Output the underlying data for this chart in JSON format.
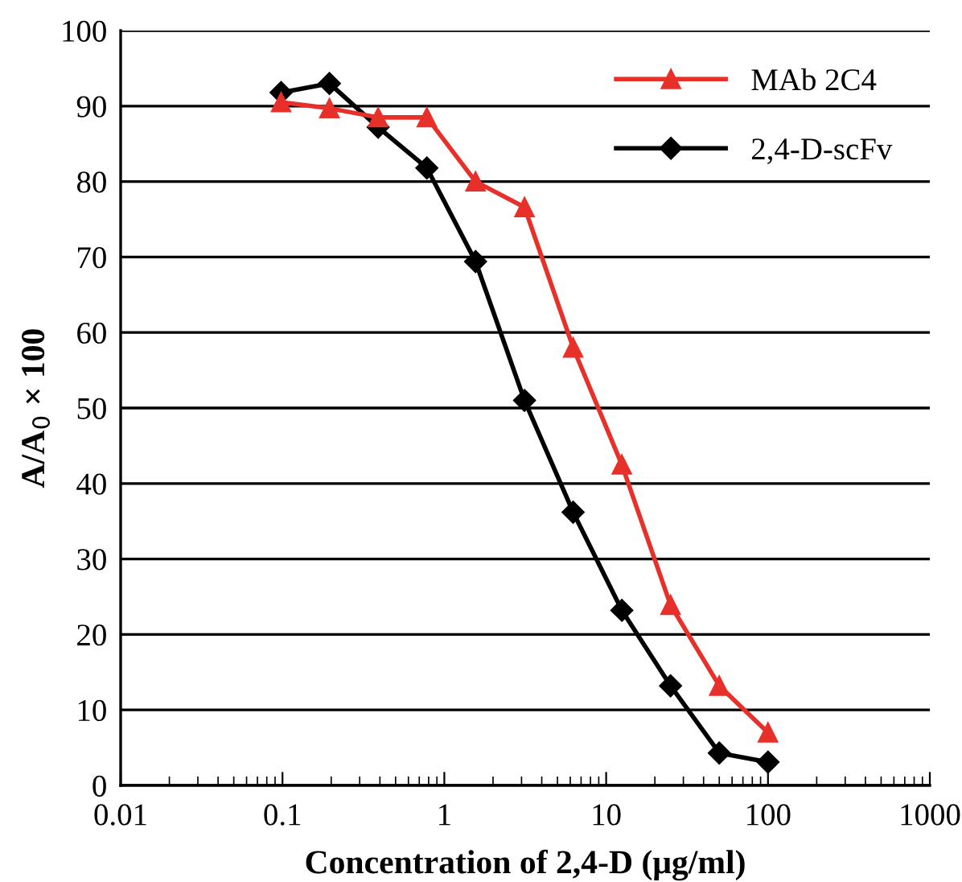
{
  "chart_data": {
    "type": "line",
    "xlabel": "Concentration of 2,4-D (μg/ml)",
    "ylabel": "A/A$_{0}$ × 100",
    "x": [
      0.098,
      0.195,
      0.39,
      0.78,
      1.56,
      3.13,
      6.25,
      12.5,
      25,
      50,
      100
    ],
    "series": [
      {
        "name": "MAb 2C4",
        "color": "#e8302a",
        "marker": "triangle",
        "values": [
          90.5,
          89.7,
          88.5,
          88.5,
          80.0,
          76.6,
          58.0,
          42.5,
          23.9,
          13.2,
          7.0
        ]
      },
      {
        "name": "2,4-D-scFv",
        "color": "#000000",
        "marker": "diamond",
        "values": [
          91.8,
          93.0,
          87.2,
          81.8,
          69.4,
          51.0,
          36.2,
          23.2,
          13.2,
          4.3,
          3.1
        ]
      }
    ],
    "log": "x",
    "xlim": [
      0.01,
      1000
    ],
    "xticks": [
      0.01,
      0.1,
      1,
      10,
      100,
      1000
    ],
    "ylim": [
      0,
      100
    ],
    "yticks": [
      0,
      10,
      20,
      30,
      40,
      50,
      60,
      70,
      80,
      90,
      100
    ],
    "grid": "y",
    "legend": "top right",
    "line_style": "solid"
  }
}
